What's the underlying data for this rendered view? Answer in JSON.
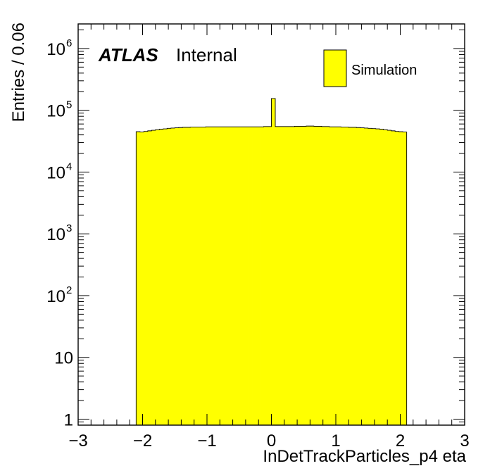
{
  "chart_data": {
    "type": "histogram",
    "title": "",
    "xlabel": "InDetTrackParticles_p4 eta",
    "ylabel": "Entries / 0.06",
    "xlim": [
      -3,
      3
    ],
    "ylim": [
      0.8,
      2500000
    ],
    "y_scale": "log",
    "bin_width": 0.06,
    "x_ticks": [
      {
        "value": -3,
        "label": "−3"
      },
      {
        "value": -2,
        "label": "−2"
      },
      {
        "value": -1,
        "label": "−1"
      },
      {
        "value": 0,
        "label": "0"
      },
      {
        "value": 1,
        "label": "1"
      },
      {
        "value": 2,
        "label": "2"
      },
      {
        "value": 3,
        "label": "3"
      }
    ],
    "y_ticks": [
      {
        "value": 1,
        "base": "1",
        "exp": ""
      },
      {
        "value": 10,
        "base": "10",
        "exp": ""
      },
      {
        "value": 100,
        "base": "10",
        "exp": "2"
      },
      {
        "value": 1000,
        "base": "10",
        "exp": "3"
      },
      {
        "value": 10000,
        "base": "10",
        "exp": "4"
      },
      {
        "value": 100000,
        "base": "10",
        "exp": "5"
      },
      {
        "value": 1000000,
        "base": "10",
        "exp": "6"
      }
    ],
    "series": [
      {
        "name": "Simulation",
        "color": "#ffff00",
        "bin_edges": [
          -2.1,
          -2.04,
          -1.98,
          -1.92,
          -1.86,
          -1.8,
          -1.74,
          -1.68,
          -1.62,
          -1.56,
          -1.5,
          -1.44,
          -1.38,
          -1.32,
          -1.26,
          -1.2,
          -1.14,
          -1.08,
          -1.02,
          -0.96,
          -0.9,
          -0.84,
          -0.78,
          -0.72,
          -0.66,
          -0.6,
          -0.54,
          -0.48,
          -0.42,
          -0.36,
          -0.3,
          -0.24,
          -0.18,
          -0.12,
          -0.06,
          0.0,
          0.06,
          0.12,
          0.18,
          0.24,
          0.3,
          0.36,
          0.42,
          0.48,
          0.54,
          0.6,
          0.66,
          0.72,
          0.78,
          0.84,
          0.9,
          0.96,
          1.02,
          1.08,
          1.14,
          1.2,
          1.26,
          1.32,
          1.38,
          1.44,
          1.5,
          1.56,
          1.62,
          1.68,
          1.74,
          1.8,
          1.86,
          1.92,
          1.98,
          2.04,
          2.1
        ],
        "values": [
          45000,
          44500,
          45500,
          46500,
          47500,
          48500,
          49500,
          50000,
          51000,
          51500,
          52000,
          52500,
          53000,
          53000,
          53500,
          53500,
          53500,
          53500,
          54000,
          54000,
          54000,
          54000,
          54000,
          54000,
          54000,
          54000,
          54000,
          54000,
          54000,
          54000,
          54000,
          54000,
          54000,
          54500,
          54500,
          155000,
          54500,
          54500,
          54500,
          54500,
          54500,
          55000,
          55000,
          55000,
          55500,
          55500,
          55000,
          55000,
          54500,
          54500,
          54000,
          54000,
          54000,
          53500,
          53500,
          53000,
          53000,
          52500,
          52000,
          51500,
          51000,
          50500,
          50000,
          49500,
          48500,
          47500,
          46500,
          45500,
          45000,
          44500
        ]
      }
    ],
    "legend": {
      "position": "top-right",
      "entries": [
        {
          "label": "Simulation",
          "color": "#ffff00"
        }
      ]
    },
    "annotations": {
      "atlas": "ATLAS",
      "status": "Internal"
    }
  }
}
